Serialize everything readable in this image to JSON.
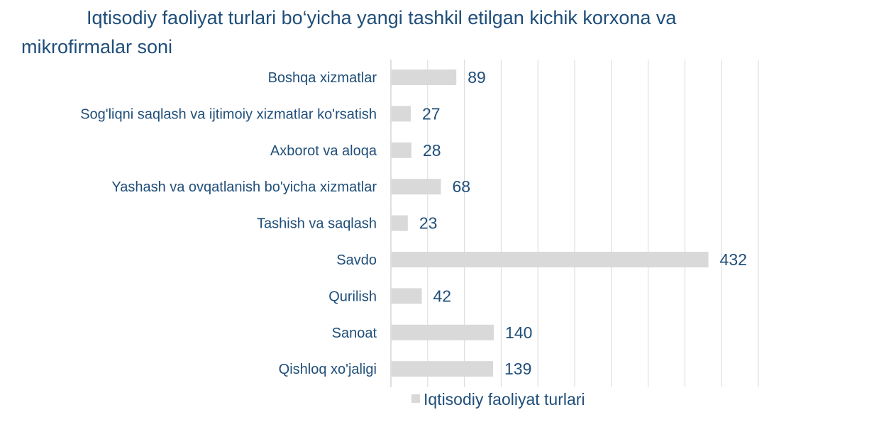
{
  "chart_data": {
    "type": "bar",
    "orientation": "horizontal",
    "title": "Iqtisodiy faoliyat turlari bo‘yicha yangi tashkil etilgan kichik korxona va mikrofirmalar soni",
    "categories": [
      "Boshqa xizmatlar",
      "Sog'liqni saqlash va ijtimoiy xizmatlar ko'rsatish",
      "Axborot va aloqa",
      "Yashash va ovqatlanish bo'yicha xizmatlar",
      "Tashish va saqlash",
      "Savdo",
      "Qurilish",
      "Sanoat",
      "Qishloq xo'jaligi"
    ],
    "series": [
      {
        "name": "Iqtisodiy faoliyat turlari",
        "values": [
          89,
          27,
          28,
          68,
          23,
          432,
          42,
          140,
          139
        ],
        "color": "#d9d9d9"
      }
    ],
    "xlim": [
      0,
      500
    ],
    "grid": true,
    "legend": "bottom",
    "colors": {
      "text": "#1f4e79",
      "grid": "#d9d9d9",
      "bar": "#d9d9d9"
    }
  }
}
